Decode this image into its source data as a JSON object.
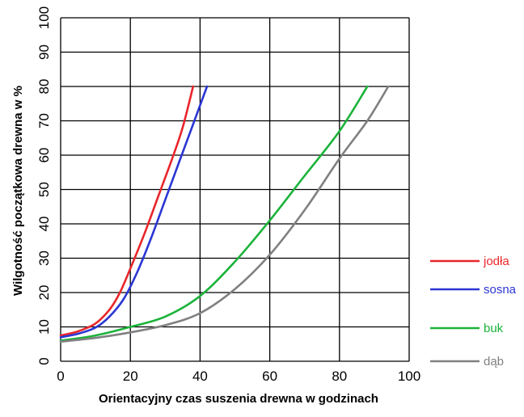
{
  "chart_data": {
    "type": "line",
    "title": "",
    "xlabel": "Orientacyjny czas suszenia drewna w godzinach",
    "ylabel": "Wilgotność początkowa drewna w %",
    "xlim": [
      0,
      100
    ],
    "ylim": [
      0,
      100
    ],
    "x_ticks": [
      "0",
      "20",
      "40",
      "60",
      "80",
      "100"
    ],
    "y_ticks": [
      "0",
      "10",
      "20",
      "30",
      "40",
      "50",
      "60",
      "70",
      "80",
      "90",
      "100"
    ],
    "grid": true,
    "legend_position": "right",
    "series": [
      {
        "name": "jodła",
        "color": "#e8262b",
        "points": [
          [
            0,
            7.5
          ],
          [
            5,
            8.7
          ],
          [
            10,
            11
          ],
          [
            14,
            15
          ],
          [
            17,
            20
          ],
          [
            20,
            27
          ],
          [
            24,
            37
          ],
          [
            28,
            48
          ],
          [
            32,
            59
          ],
          [
            35,
            68
          ],
          [
            38,
            80
          ]
        ]
      },
      {
        "name": "sosna",
        "color": "#2b36d4",
        "points": [
          [
            0,
            7
          ],
          [
            5,
            8
          ],
          [
            10,
            9.8
          ],
          [
            14,
            13
          ],
          [
            18,
            18
          ],
          [
            22,
            26
          ],
          [
            26,
            36
          ],
          [
            30,
            47
          ],
          [
            34,
            58
          ],
          [
            38,
            69
          ],
          [
            42,
            80
          ]
        ]
      },
      {
        "name": "buk",
        "color": "#1bb33a",
        "points": [
          [
            0,
            6
          ],
          [
            10,
            7.5
          ],
          [
            20,
            10
          ],
          [
            30,
            13
          ],
          [
            40,
            19
          ],
          [
            50,
            29
          ],
          [
            60,
            41
          ],
          [
            70,
            54
          ],
          [
            80,
            67
          ],
          [
            88,
            80
          ]
        ]
      },
      {
        "name": "dąb",
        "color": "#808080",
        "points": [
          [
            0,
            5.7
          ],
          [
            10,
            6.8
          ],
          [
            20,
            8.4
          ],
          [
            30,
            10.5
          ],
          [
            40,
            14
          ],
          [
            50,
            21
          ],
          [
            60,
            31
          ],
          [
            70,
            44
          ],
          [
            80,
            59
          ],
          [
            88,
            70
          ],
          [
            94,
            80
          ]
        ]
      }
    ]
  }
}
